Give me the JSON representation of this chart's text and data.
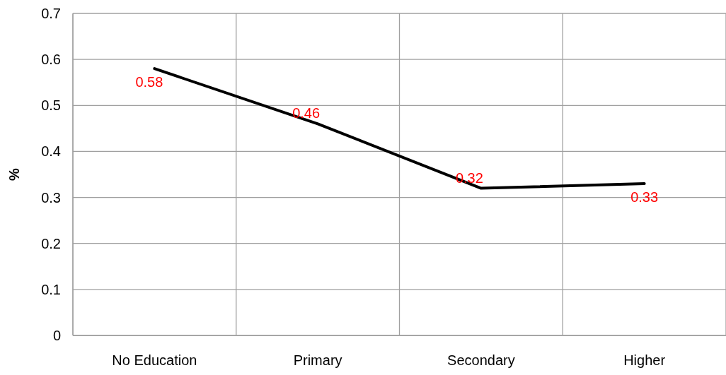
{
  "chart_data": {
    "type": "line",
    "ylabel": "%",
    "categories": [
      "No Education",
      "Primary",
      "Secondary",
      "Higher"
    ],
    "series": [
      {
        "color": "#000000",
        "values": [
          0.58,
          0.46,
          0.32,
          0.33
        ]
      }
    ],
    "ylim": [
      0,
      0.7
    ],
    "yticks": [
      0,
      0.1,
      0.2,
      0.3,
      0.4,
      0.5,
      0.6,
      0.7
    ],
    "grid": true,
    "data_labels": true,
    "marker": "none",
    "line_style": "solid"
  }
}
